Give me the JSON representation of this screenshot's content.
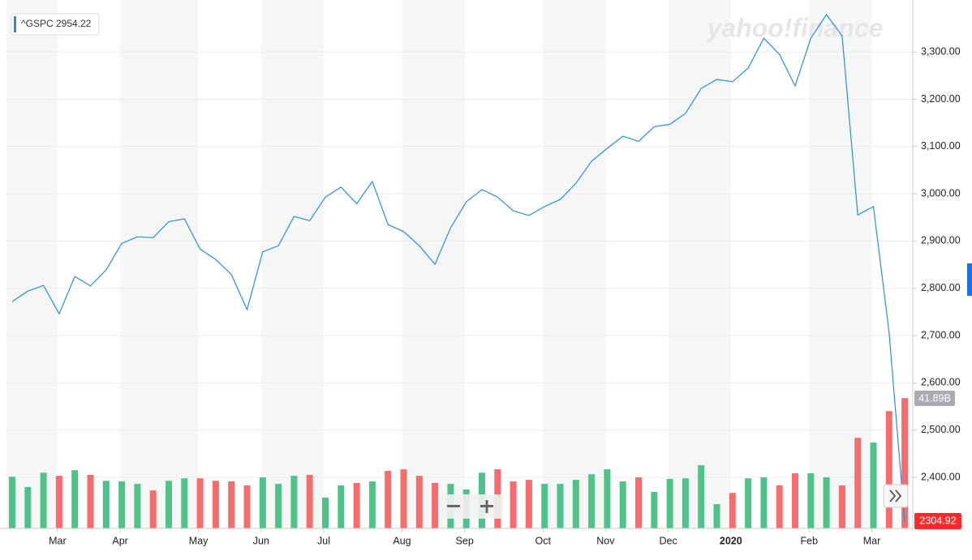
{
  "chart_data": {
    "type": "line",
    "legend_label": "^GSPC 2954.22",
    "watermark": "yahoo!finance",
    "last_price_label": "2304.92",
    "last_volume_label": "41.89B",
    "categories": [
      null,
      null,
      null,
      "Mar",
      null,
      null,
      null,
      "Apr",
      null,
      null,
      null,
      null,
      "May",
      null,
      null,
      null,
      "Jun",
      null,
      null,
      null,
      "Jul",
      null,
      null,
      null,
      null,
      "Aug",
      null,
      null,
      null,
      "Sep",
      null,
      null,
      null,
      null,
      "Oct",
      null,
      null,
      null,
      "Nov",
      null,
      null,
      null,
      "Dec",
      null,
      null,
      null,
      "2020",
      null,
      null,
      null,
      null,
      "Feb",
      null,
      null,
      null,
      "Mar",
      null,
      null
    ],
    "series": [
      {
        "name": "^GSPC",
        "color": "#2b8be0",
        "values": [
          2772,
          2794,
          2806,
          2746,
          2825,
          2805,
          2839,
          2895,
          2909,
          2907,
          2941,
          2947,
          2883,
          2861,
          2829,
          2755,
          2877,
          2890,
          2952,
          2943,
          2993,
          3014,
          2979,
          3026,
          2935,
          2920,
          2890,
          2851,
          2928,
          2983,
          3009,
          2993,
          2964,
          2954,
          2973,
          2988,
          3022,
          3069,
          3096,
          3122,
          3111,
          3142,
          3147,
          3170,
          3223,
          3242,
          3237,
          3266,
          3329,
          3295,
          3228,
          3329,
          3379,
          3334,
          2955,
          2973,
          2707,
          2304.92
        ]
      }
    ],
    "volume": {
      "values": [
        16.6,
        13.3,
        17.9,
        16.9,
        18.7,
        17.2,
        15.3,
        15.1,
        14.3,
        12.2,
        15.3,
        16.1,
        16.1,
        15.3,
        15.1,
        13.8,
        16.4,
        14.3,
        16.9,
        17.2,
        9.9,
        13.8,
        14.6,
        15.1,
        18.5,
        19.0,
        16.9,
        14.6,
        14.3,
        12.5,
        17.9,
        19.0,
        15.1,
        15.6,
        14.3,
        14.3,
        15.6,
        17.4,
        19.0,
        15.1,
        16.4,
        11.7,
        15.9,
        16.1,
        20.3,
        7.8,
        11.4,
        16.1,
        16.4,
        13.8,
        17.7,
        17.7,
        16.4,
        13.8,
        29.1,
        27.6,
        37.7,
        41.89
      ],
      "direction": [
        "up",
        "up",
        "up",
        "down",
        "up",
        "down",
        "up",
        "up",
        "up",
        "down",
        "up",
        "up",
        "down",
        "down",
        "down",
        "down",
        "up",
        "up",
        "up",
        "down",
        "up",
        "up",
        "down",
        "up",
        "down",
        "down",
        "down",
        "down",
        "up",
        "up",
        "up",
        "down",
        "down",
        "down",
        "up",
        "up",
        "up",
        "up",
        "up",
        "up",
        "down",
        "up",
        "up",
        "up",
        "up",
        "up",
        "down",
        "up",
        "up",
        "down",
        "down",
        "up",
        "up",
        "down",
        "down",
        "up",
        "down",
        "down"
      ],
      "up_color": "#4fc28a",
      "down_color": "#f76c6c",
      "lim": [
        0,
        168
      ]
    },
    "ylim": [
      2292,
      3398
    ],
    "yticks": [
      {
        "value": 2400,
        "label": "2,400.00"
      },
      {
        "value": 2500,
        "label": "2,500.00"
      },
      {
        "value": 2600,
        "label": "2,600.00"
      },
      {
        "value": 2700,
        "label": "2,700.00"
      },
      {
        "value": 2800,
        "label": "2,800.00"
      },
      {
        "value": 2900,
        "label": "2,900.00"
      },
      {
        "value": 3000,
        "label": "3,000.00"
      },
      {
        "value": 3100,
        "label": "3,100.00"
      },
      {
        "value": 3200,
        "label": "3,200.00"
      },
      {
        "value": 3300,
        "label": "3,300.00"
      }
    ],
    "grid": true
  }
}
